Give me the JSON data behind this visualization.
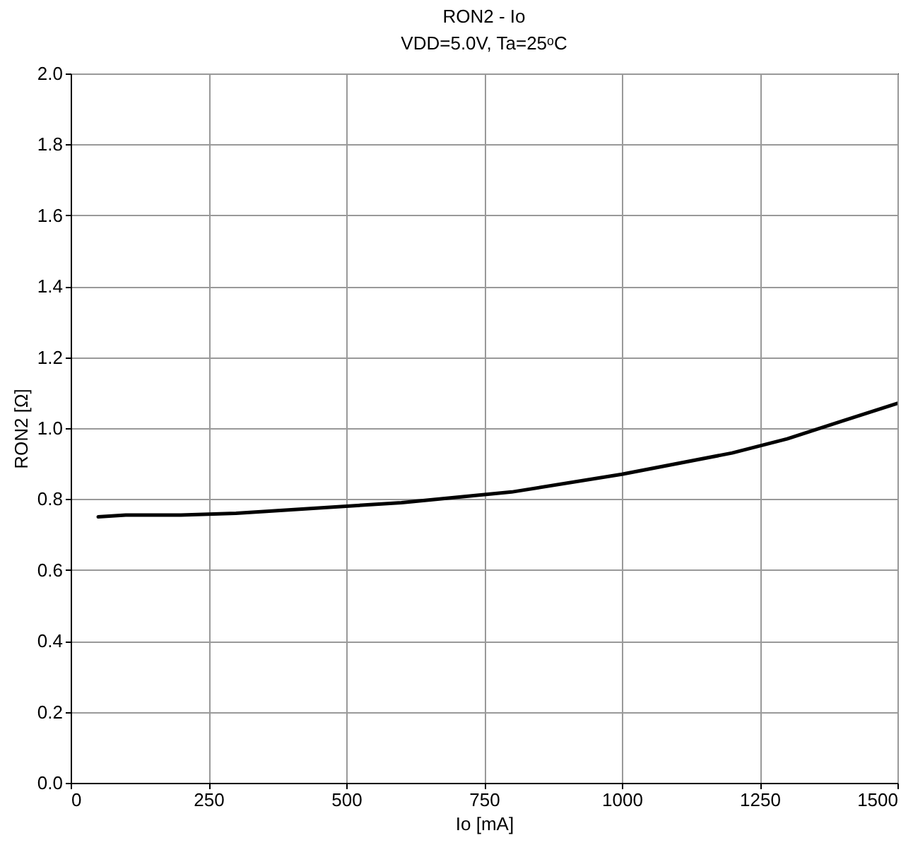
{
  "chart_data": {
    "type": "line",
    "title": "RON2 - Io",
    "subtitle": "VDD=5.0V, Ta=25ᵒC",
    "xlabel": "Io [mA]",
    "ylabel": "RON2 [Ω]",
    "x": [
      50,
      100,
      200,
      300,
      400,
      500,
      600,
      800,
      1000,
      1200,
      1300,
      1400,
      1500
    ],
    "series": [
      {
        "color": "#000000",
        "values": [
          0.75,
          0.755,
          0.755,
          0.76,
          0.77,
          0.78,
          0.79,
          0.82,
          0.87,
          0.93,
          0.97,
          1.02,
          1.07
        ]
      }
    ],
    "xlim": [
      0,
      1500
    ],
    "xticks": [
      0,
      250,
      500,
      750,
      1000,
      1250,
      1500
    ],
    "ylim": [
      0,
      2
    ],
    "yticks": [
      {
        "value": 0,
        "label": "0.0"
      },
      {
        "value": 0.2,
        "label": "0.2"
      },
      {
        "value": 0.4,
        "label": "0.4"
      },
      {
        "value": 0.6,
        "label": "0.6"
      },
      {
        "value": 0.8,
        "label": "0.8"
      },
      {
        "value": 1,
        "label": "1.0"
      },
      {
        "value": 1.2,
        "label": "1.2"
      },
      {
        "value": 1.4,
        "label": "1.4"
      },
      {
        "value": 1.6,
        "label": "1.6"
      },
      {
        "value": 1.8,
        "label": "1.8"
      },
      {
        "value": 2,
        "label": "2.0"
      }
    ],
    "grid": true,
    "marker": "none",
    "line_style": "solid"
  }
}
